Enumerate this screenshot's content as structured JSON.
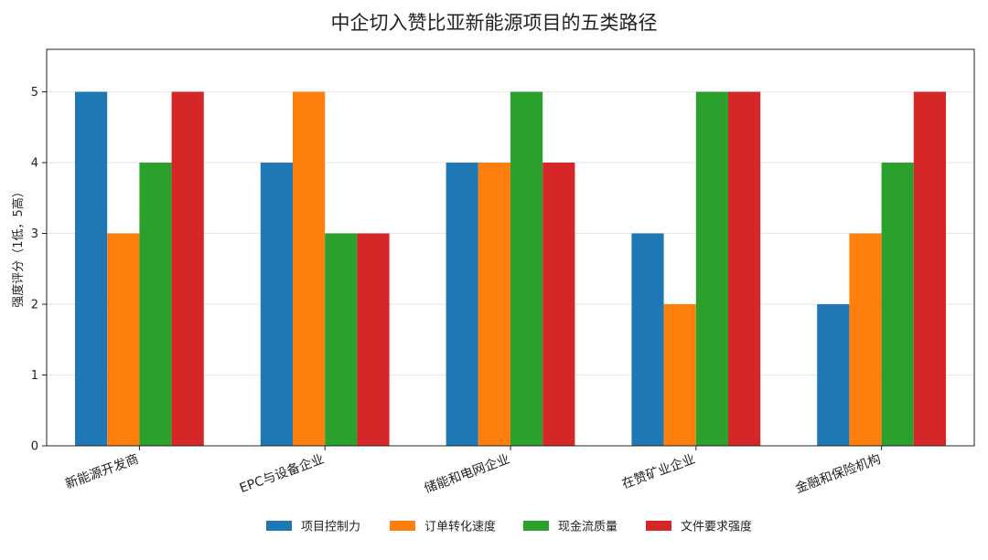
{
  "chart_data": {
    "type": "bar",
    "title": "中企切入赞比亚新能源项目的五类路径",
    "xlabel": "",
    "ylabel": "强度评分（1低，5高）",
    "ylim": [
      0,
      5.6
    ],
    "yticks": [
      0,
      1,
      2,
      3,
      4,
      5
    ],
    "grid": "y",
    "legend_position": "bottom-center",
    "categories": [
      "新能源开发商",
      "EPC与设备企业",
      "储能和电网企业",
      "在赞矿业企业",
      "金融和保险机构"
    ],
    "series": [
      {
        "name": "项目控制力",
        "color": "#1f77b4",
        "values": [
          5,
          4,
          4,
          3,
          2
        ]
      },
      {
        "name": "订单转化速度",
        "color": "#ff7f0e",
        "values": [
          3,
          5,
          4,
          2,
          3
        ]
      },
      {
        "name": "现金流质量",
        "color": "#2ca02c",
        "values": [
          4,
          3,
          5,
          5,
          4
        ]
      },
      {
        "name": "文件要求强度",
        "color": "#d62728",
        "values": [
          5,
          3,
          4,
          5,
          5
        ]
      }
    ]
  }
}
